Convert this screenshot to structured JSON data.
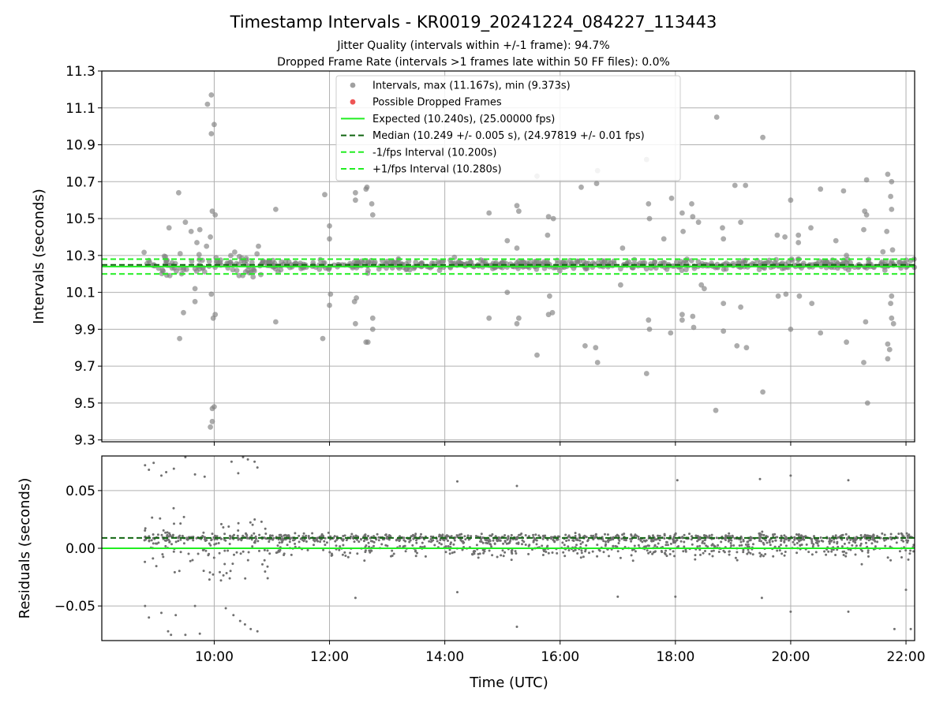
{
  "figure": {
    "title": "Timestamp Intervals - KR0019_20241224_084227_113443",
    "subtitle_1": "Jitter Quality (intervals within +/-1 frame): 94.7%",
    "subtitle_2": "Dropped Frame Rate (intervals >1 frames late within 50 FF files): 0.0%"
  },
  "colors": {
    "intervals": "#808080",
    "dropped": "#ee3333",
    "expected": "#22ee22",
    "median": "#116611",
    "fps_bounds": "#22ee22",
    "grid": "#b0b0b0"
  },
  "chart_data": [
    {
      "type": "scatter",
      "ylabel": "Intervals (seconds)",
      "ylim": [
        9.29,
        11.3
      ],
      "xlim": [
        "08:03",
        "22:09"
      ],
      "x_ticks": [
        "10:00",
        "12:00",
        "14:00",
        "16:00",
        "18:00",
        "20:00",
        "22:00"
      ],
      "y_ticks": [
        "9.3",
        "9.5",
        "9.7",
        "9.9",
        "10.1",
        "10.3",
        "10.5",
        "10.7",
        "10.9",
        "11.1",
        "11.3"
      ],
      "grid": true,
      "legend_position": "top-center",
      "legend": [
        {
          "label": "Intervals, max (11.167s), min (9.373s)",
          "kind": "dot",
          "color": "#a0a0a0"
        },
        {
          "label": "Possible Dropped Frames",
          "kind": "dot",
          "color": "#ee5555"
        },
        {
          "label": "Expected (10.240s), (25.00000 fps)",
          "kind": "line",
          "color": "#22ee22",
          "dash": false
        },
        {
          "label": "Median (10.249 +/- 0.005 s), (24.97819 +/- 0.01 fps)",
          "kind": "line",
          "color": "#116611",
          "dash": true
        },
        {
          "label": "-1/fps Interval (10.200s)",
          "kind": "line",
          "color": "#22ee22",
          "dash": true
        },
        {
          "label": "+1/fps Interval (10.280s)",
          "kind": "line",
          "color": "#22ee22",
          "dash": true
        }
      ],
      "hlines": [
        {
          "name": "Expected",
          "y": 10.24
        },
        {
          "name": "Median",
          "y": 10.249
        },
        {
          "name": "-1/fps",
          "y": 10.2
        },
        {
          "name": "+1/fps",
          "y": 10.28
        }
      ],
      "outliers": [
        [
          "09:13",
          10.45
        ],
        [
          "09:23",
          10.64
        ],
        [
          "09:30",
          10.48
        ],
        [
          "09:28",
          9.99
        ],
        [
          "09:24",
          9.85
        ],
        [
          "09:36",
          10.43
        ],
        [
          "09:42",
          10.37
        ],
        [
          "09:40",
          10.12
        ],
        [
          "09:40",
          10.05
        ],
        [
          "09:45",
          10.44
        ],
        [
          "09:52",
          10.35
        ],
        [
          "09:53",
          11.12
        ],
        [
          "09:57",
          11.17
        ],
        [
          "09:57",
          10.96
        ],
        [
          "10:00",
          11.01
        ],
        [
          "09:58",
          10.54
        ],
        [
          "10:01",
          10.52
        ],
        [
          "09:56",
          10.4
        ],
        [
          "09:57",
          10.09
        ],
        [
          "09:59",
          9.96
        ],
        [
          "10:01",
          9.98
        ],
        [
          "09:56",
          9.37
        ],
        [
          "09:58",
          9.4
        ],
        [
          "09:58",
          9.47
        ],
        [
          "10:00",
          9.48
        ],
        [
          "10:46",
          10.35
        ],
        [
          "11:04",
          10.55
        ],
        [
          "11:04",
          9.94
        ],
        [
          "11:55",
          10.63
        ],
        [
          "11:53",
          9.85
        ],
        [
          "12:00",
          10.46
        ],
        [
          "12:00",
          10.39
        ],
        [
          "12:01",
          10.09
        ],
        [
          "12:00",
          10.03
        ],
        [
          "12:27",
          10.64
        ],
        [
          "12:27",
          10.6
        ],
        [
          "12:28",
          10.07
        ],
        [
          "12:26",
          10.05
        ],
        [
          "12:27",
          9.93
        ],
        [
          "12:38",
          10.66
        ],
        [
          "12:39",
          10.67
        ],
        [
          "12:44",
          10.58
        ],
        [
          "12:45",
          10.52
        ],
        [
          "12:45",
          9.96
        ],
        [
          "12:45",
          9.9
        ],
        [
          "12:38",
          9.83
        ],
        [
          "12:40",
          9.83
        ],
        [
          "14:10",
          10.29
        ],
        [
          "14:46",
          10.53
        ],
        [
          "14:46",
          9.96
        ],
        [
          "15:05",
          10.38
        ],
        [
          "15:05",
          10.1
        ],
        [
          "15:15",
          10.57
        ],
        [
          "15:17",
          10.54
        ],
        [
          "15:15",
          10.34
        ],
        [
          "15:17",
          9.96
        ],
        [
          "15:15",
          9.93
        ],
        [
          "15:36",
          10.73
        ],
        [
          "15:36",
          9.76
        ],
        [
          "15:48",
          10.51
        ],
        [
          "15:53",
          10.5
        ],
        [
          "15:47",
          10.41
        ],
        [
          "15:49",
          10.08
        ],
        [
          "15:48",
          9.98
        ],
        [
          "15:52",
          9.99
        ],
        [
          "16:22",
          10.67
        ],
        [
          "16:26",
          9.81
        ],
        [
          "16:38",
          10.69
        ],
        [
          "16:39",
          10.76
        ],
        [
          "16:37",
          9.8
        ],
        [
          "16:39",
          9.72
        ],
        [
          "17:05",
          10.34
        ],
        [
          "17:03",
          10.14
        ],
        [
          "17:30",
          10.82
        ],
        [
          "17:32",
          10.58
        ],
        [
          "17:33",
          10.5
        ],
        [
          "17:32",
          9.95
        ],
        [
          "17:33",
          9.9
        ],
        [
          "17:30",
          9.66
        ],
        [
          "17:48",
          10.39
        ],
        [
          "17:56",
          10.61
        ],
        [
          "17:55",
          9.88
        ],
        [
          "18:07",
          10.53
        ],
        [
          "18:08",
          10.43
        ],
        [
          "18:07",
          9.98
        ],
        [
          "18:07",
          9.95
        ],
        [
          "18:17",
          10.58
        ],
        [
          "18:18",
          10.51
        ],
        [
          "18:19",
          9.91
        ],
        [
          "18:18",
          9.97
        ],
        [
          "18:24",
          10.48
        ],
        [
          "18:27",
          10.14
        ],
        [
          "18:30",
          10.12
        ],
        [
          "18:43",
          11.05
        ],
        [
          "18:42",
          9.46
        ],
        [
          "18:49",
          10.45
        ],
        [
          "18:50",
          10.39
        ],
        [
          "18:50",
          10.04
        ],
        [
          "18:50",
          9.89
        ],
        [
          "19:02",
          10.68
        ],
        [
          "19:04",
          9.81
        ],
        [
          "19:08",
          10.48
        ],
        [
          "19:08",
          10.02
        ],
        [
          "19:13",
          10.68
        ],
        [
          "19:14",
          9.8
        ],
        [
          "19:31",
          10.94
        ],
        [
          "19:31",
          9.56
        ],
        [
          "19:46",
          10.41
        ],
        [
          "19:47",
          10.08
        ],
        [
          "19:54",
          10.4
        ],
        [
          "19:55",
          10.09
        ],
        [
          "20:00",
          10.6
        ],
        [
          "20:01",
          10.28
        ],
        [
          "20:00",
          9.9
        ],
        [
          "20:08",
          10.41
        ],
        [
          "20:08",
          10.37
        ],
        [
          "20:09",
          10.08
        ],
        [
          "20:21",
          10.45
        ],
        [
          "20:22",
          10.04
        ],
        [
          "20:31",
          10.66
        ],
        [
          "20:31",
          9.88
        ],
        [
          "20:47",
          10.38
        ],
        [
          "20:55",
          10.65
        ],
        [
          "20:58",
          10.3
        ],
        [
          "20:58",
          9.83
        ],
        [
          "21:17",
          10.54
        ],
        [
          "21:19",
          10.52
        ],
        [
          "21:16",
          10.44
        ],
        [
          "21:19",
          10.71
        ],
        [
          "21:18",
          9.94
        ],
        [
          "21:16",
          9.72
        ],
        [
          "21:20",
          9.5
        ],
        [
          "21:36",
          10.32
        ],
        [
          "21:38",
          10.22
        ],
        [
          "21:40",
          10.43
        ],
        [
          "21:41",
          10.74
        ],
        [
          "21:45",
          10.7
        ],
        [
          "21:44",
          10.62
        ],
        [
          "21:45",
          10.55
        ],
        [
          "21:46",
          10.33
        ],
        [
          "21:45",
          10.08
        ],
        [
          "21:44",
          10.04
        ],
        [
          "21:45",
          9.96
        ],
        [
          "21:47",
          9.93
        ],
        [
          "21:41",
          9.82
        ],
        [
          "21:43",
          9.79
        ],
        [
          "21:41",
          9.74
        ]
      ]
    },
    {
      "type": "scatter",
      "xlabel": "Time (UTC)",
      "ylabel": "Residuals (seconds)",
      "ylim": [
        -0.08,
        0.08
      ],
      "y_ticks": [
        "0.05",
        "0.00",
        "−0.05"
      ],
      "x_ticks": [
        "10:00",
        "12:00",
        "14:00",
        "16:00",
        "18:00",
        "20:00",
        "22:00"
      ],
      "grid": true,
      "hlines": [
        {
          "name": "Median residual",
          "y": 0.009
        },
        {
          "name": "Zero",
          "y": 0.0
        }
      ],
      "outliers": [
        [
          "08:48",
          0.072
        ],
        [
          "08:52",
          0.068
        ],
        [
          "08:57",
          0.074
        ],
        [
          "09:05",
          0.063
        ],
        [
          "09:10",
          0.066
        ],
        [
          "09:18",
          0.069
        ],
        [
          "09:30",
          0.079
        ],
        [
          "09:40",
          0.064
        ],
        [
          "09:50",
          0.062
        ],
        [
          "10:18",
          0.075
        ],
        [
          "10:25",
          0.065
        ],
        [
          "10:30",
          0.079
        ],
        [
          "10:35",
          0.077
        ],
        [
          "10:42",
          0.075
        ],
        [
          "10:45",
          0.07
        ],
        [
          "14:13",
          0.058
        ],
        [
          "15:15",
          0.054
        ],
        [
          "18:02",
          0.059
        ],
        [
          "19:28",
          0.06
        ],
        [
          "20:00",
          0.063
        ],
        [
          "21:00",
          0.059
        ],
        [
          "08:48",
          -0.05
        ],
        [
          "08:52",
          -0.06
        ],
        [
          "09:05",
          -0.056
        ],
        [
          "09:12",
          -0.072
        ],
        [
          "09:15",
          -0.075
        ],
        [
          "09:20",
          -0.058
        ],
        [
          "09:30",
          -0.075
        ],
        [
          "09:40",
          -0.05
        ],
        [
          "09:45",
          -0.074
        ],
        [
          "10:12",
          -0.052
        ],
        [
          "10:20",
          -0.058
        ],
        [
          "10:27",
          -0.063
        ],
        [
          "10:32",
          -0.066
        ],
        [
          "10:38",
          -0.07
        ],
        [
          "10:45",
          -0.072
        ],
        [
          "12:27",
          -0.043
        ],
        [
          "14:13",
          -0.038
        ],
        [
          "15:15",
          -0.068
        ],
        [
          "17:00",
          -0.042
        ],
        [
          "18:00",
          -0.042
        ],
        [
          "19:30",
          -0.043
        ],
        [
          "20:00",
          -0.055
        ],
        [
          "21:00",
          -0.055
        ],
        [
          "21:48",
          -0.07
        ],
        [
          "22:00",
          -0.036
        ],
        [
          "22:05",
          -0.07
        ]
      ]
    }
  ]
}
